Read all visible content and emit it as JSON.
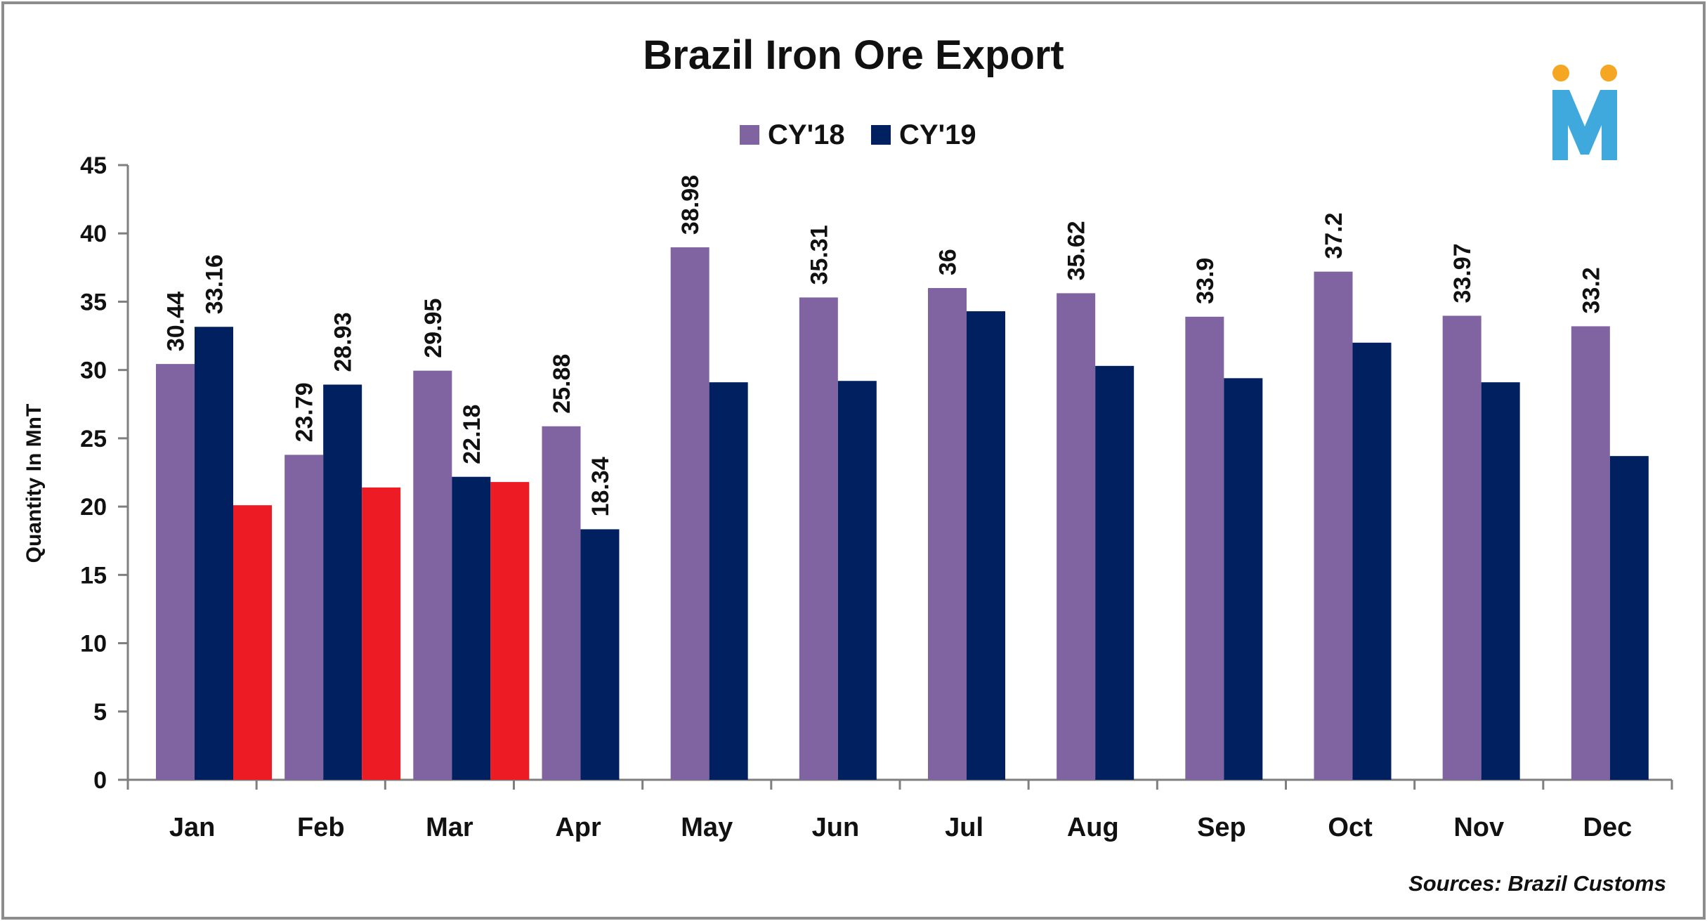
{
  "chart_data": {
    "type": "bar",
    "title": "Brazil Iron Ore Export",
    "xlabel": "",
    "ylabel": "Quantity In MnT",
    "ylim": [
      0,
      45
    ],
    "yticks": [
      0,
      5,
      10,
      15,
      20,
      25,
      30,
      35,
      40,
      45
    ],
    "grid": false,
    "legend_position": "top-center",
    "categories": [
      "Jan",
      "Feb",
      "Mar",
      "Apr",
      "May",
      "Jun",
      "Jul",
      "Aug",
      "Sep",
      "Oct",
      "Nov",
      "Dec"
    ],
    "series": [
      {
        "name": "CY'18",
        "color": "#8064a2",
        "in_legend": true,
        "values": [
          30.44,
          23.79,
          29.95,
          25.88,
          38.98,
          35.31,
          36,
          35.62,
          33.9,
          37.2,
          33.97,
          33.2
        ],
        "labels": [
          "30.44",
          "23.79",
          "29.95",
          "25.88",
          "38.98",
          "35.31",
          "36",
          "35.62",
          "33.9",
          "37.2",
          "33.97",
          "33.2"
        ]
      },
      {
        "name": "CY'19",
        "color": "#002060",
        "in_legend": true,
        "values": [
          33.16,
          28.93,
          22.18,
          18.34,
          29.1,
          29.2,
          34.3,
          30.3,
          29.4,
          32.0,
          29.1,
          23.7
        ],
        "labels": [
          "33.16",
          "28.93",
          "22.18",
          "18.34",
          null,
          null,
          null,
          null,
          null,
          null,
          null,
          null
        ]
      },
      {
        "name": "",
        "color": "#ed1c24",
        "in_legend": false,
        "values": [
          20.1,
          21.4,
          21.8,
          null,
          null,
          null,
          null,
          null,
          null,
          null,
          null,
          null
        ],
        "labels": [
          null,
          null,
          null,
          null,
          null,
          null,
          null,
          null,
          null,
          null,
          null,
          null
        ]
      }
    ],
    "source": "Sources: Brazil Customs"
  },
  "logo": {
    "letter": "M",
    "color": "#3fa9dd",
    "dot_color": "#f5a623"
  }
}
